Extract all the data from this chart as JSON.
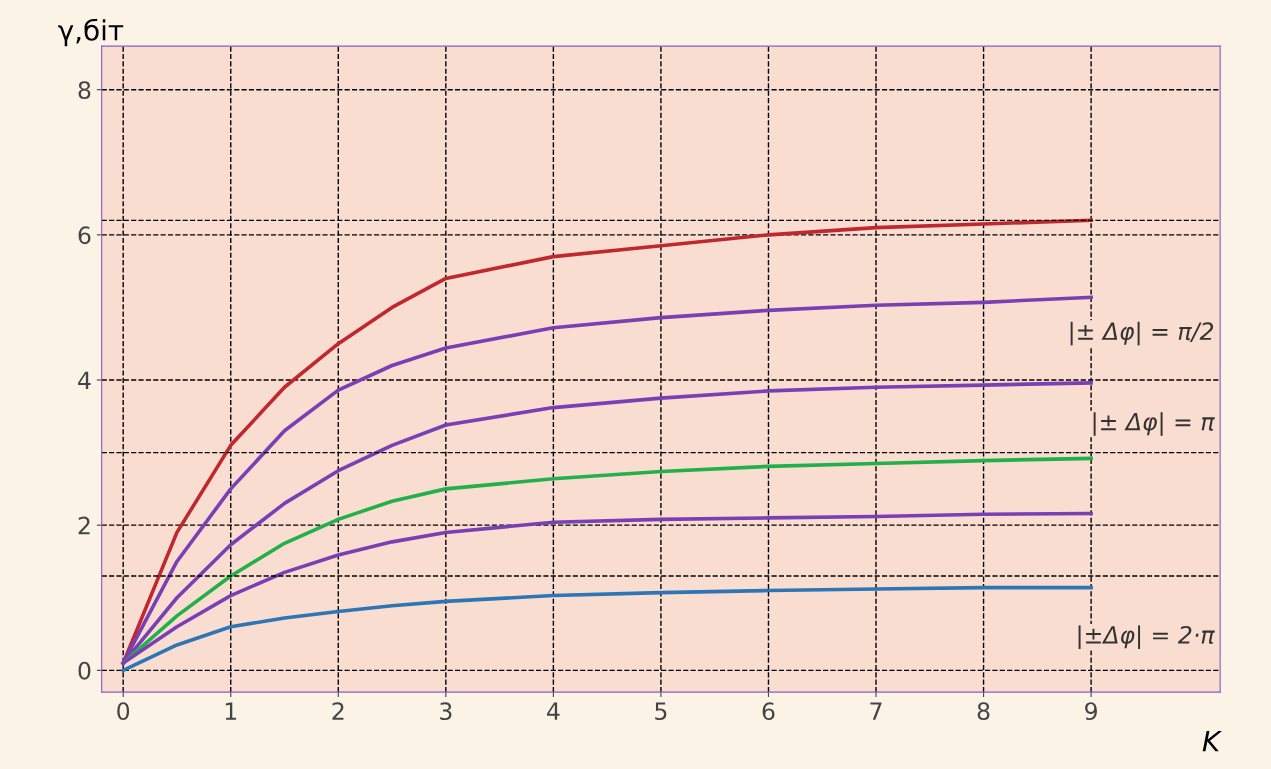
{
  "chart_data": {
    "type": "line",
    "xlabel": "K",
    "ylabel": "γ,біт",
    "x": [
      0,
      0.5,
      1,
      1.5,
      2,
      2.5,
      3,
      4,
      5,
      6,
      7,
      8,
      9
    ],
    "series": [
      {
        "color": "#c0282d",
        "values": [
          0.1,
          1.9,
          3.1,
          3.9,
          4.5,
          5.0,
          5.4,
          5.7,
          5.85,
          6.0,
          6.1,
          6.15,
          6.2
        ]
      },
      {
        "color": "#7b3fb5",
        "values": [
          0.1,
          1.5,
          2.5,
          3.3,
          3.86,
          4.2,
          4.44,
          4.72,
          4.86,
          4.96,
          5.03,
          5.07,
          5.14
        ]
      },
      {
        "color": "#7b3fb5",
        "values": [
          0.1,
          1.0,
          1.73,
          2.3,
          2.75,
          3.1,
          3.38,
          3.62,
          3.75,
          3.85,
          3.9,
          3.93,
          3.96
        ]
      },
      {
        "color": "#22b04b",
        "values": [
          0.1,
          0.75,
          1.3,
          1.75,
          2.08,
          2.33,
          2.5,
          2.64,
          2.74,
          2.81,
          2.85,
          2.89,
          2.92
        ]
      },
      {
        "color": "#7b3fb5",
        "values": [
          0.1,
          0.6,
          1.03,
          1.35,
          1.59,
          1.77,
          1.9,
          2.04,
          2.08,
          2.1,
          2.12,
          2.15,
          2.16
        ]
      },
      {
        "color": "#2e75b6",
        "values": [
          0.0,
          0.35,
          0.6,
          0.72,
          0.81,
          0.89,
          0.95,
          1.03,
          1.07,
          1.1,
          1.12,
          1.14,
          1.14
        ]
      }
    ],
    "xlim": [
      -0.2,
      10.2
    ],
    "ylim": [
      -0.3,
      8.6
    ],
    "xticks": [
      0,
      1,
      2,
      3,
      4,
      5,
      6,
      7,
      8,
      9
    ],
    "yticks": [
      0,
      2,
      4,
      6,
      8
    ],
    "grid": true,
    "line_style": "solid",
    "marker": "none",
    "ref_lines": [
      {
        "axis": "y",
        "value": 6.2,
        "label": null,
        "line_style": "dashed",
        "color": "#000000"
      },
      {
        "axis": "y",
        "value": 3.0,
        "label": null,
        "line_style": "dashed",
        "color": "#000000"
      },
      {
        "axis": "y",
        "value": 1.3,
        "label": null,
        "line_style": "dashed",
        "color": "#000000"
      }
    ],
    "annotations": [
      "|± Δφ| = π/2",
      "|± Δφ| = π",
      "|±Δφ| = 2·π"
    ]
  }
}
